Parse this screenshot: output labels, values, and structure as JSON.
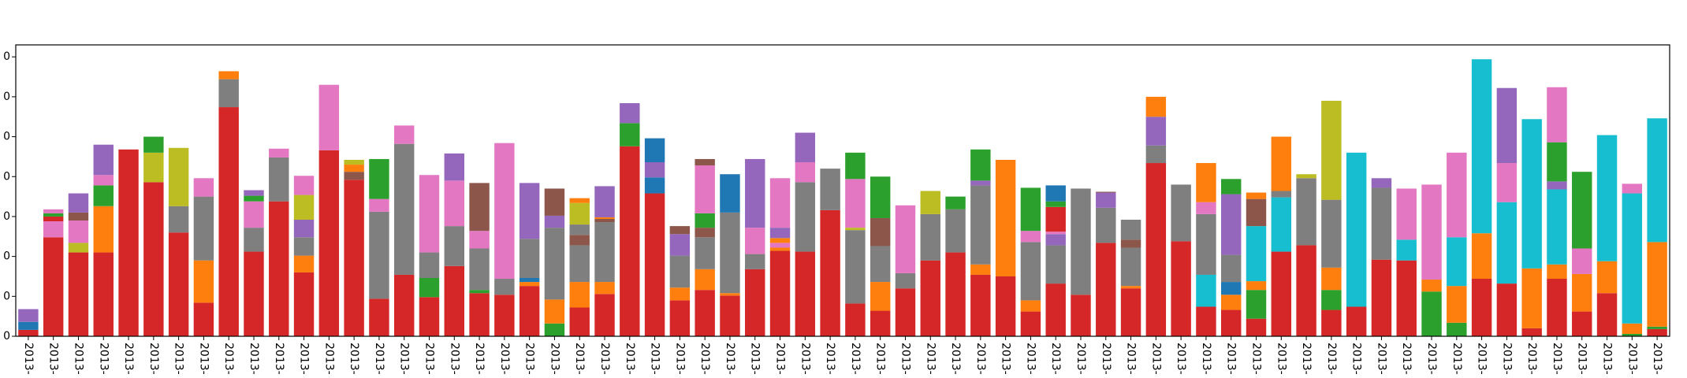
{
  "chart_data": {
    "type": "bar",
    "stacked": true,
    "title": "",
    "xlabel": "",
    "ylabel": "",
    "ylim": [
      0,
      365
    ],
    "yticks": [
      0,
      50,
      100,
      150,
      200,
      250,
      300,
      350
    ],
    "ytick_labels": [
      "0",
      "0",
      "0",
      "0",
      "0",
      "0",
      "0",
      "0"
    ],
    "grid": false,
    "legend": "none",
    "category_label": "2013-",
    "series_colors": {
      "red": "#d62728",
      "blue": "#1f77b4",
      "pink": "#e377c2",
      "green": "#2ca02c",
      "brown": "#8c564b",
      "purple": "#9467bd",
      "olive": "#bcbd22",
      "orange": "#ff7f0e",
      "gray": "#7f7f7f",
      "cyan": "#17becf"
    },
    "bars": [
      [
        [
          "red",
          8
        ],
        [
          "blue",
          10
        ],
        [
          "purple",
          16
        ]
      ],
      [
        [
          "red",
          124
        ],
        [
          "pink",
          20
        ],
        [
          "red",
          6
        ],
        [
          "green",
          4
        ],
        [
          "pink",
          5
        ]
      ],
      [
        [
          "red",
          105
        ],
        [
          "olive",
          12
        ],
        [
          "pink",
          28
        ],
        [
          "brown",
          10
        ],
        [
          "purple",
          24
        ]
      ],
      [
        [
          "red",
          105
        ],
        [
          "orange",
          58
        ],
        [
          "green",
          26
        ],
        [
          "pink",
          13
        ],
        [
          "purple",
          38
        ]
      ],
      [
        [
          "red",
          234
        ]
      ],
      [
        [
          "red",
          193
        ],
        [
          "olive",
          37
        ],
        [
          "green",
          20
        ]
      ],
      [
        [
          "red",
          130
        ],
        [
          "gray",
          33
        ],
        [
          "olive",
          73
        ]
      ],
      [
        [
          "red",
          42
        ],
        [
          "orange",
          53
        ],
        [
          "gray",
          80
        ],
        [
          "pink",
          23
        ]
      ],
      [
        [
          "red",
          287
        ],
        [
          "gray",
          35
        ],
        [
          "orange",
          10
        ]
      ],
      [
        [
          "red",
          106
        ],
        [
          "gray",
          30
        ],
        [
          "pink",
          33
        ],
        [
          "green",
          7
        ],
        [
          "purple",
          7
        ]
      ],
      [
        [
          "red",
          169
        ],
        [
          "gray",
          55
        ],
        [
          "pink",
          11
        ]
      ],
      [
        [
          "red",
          80
        ],
        [
          "orange",
          21
        ],
        [
          "gray",
          23
        ],
        [
          "purple",
          22
        ],
        [
          "olive",
          31
        ],
        [
          "pink",
          24
        ]
      ],
      [
        [
          "red",
          233
        ],
        [
          "pink",
          82
        ]
      ],
      [
        [
          "red",
          196
        ],
        [
          "brown",
          10
        ],
        [
          "orange",
          9
        ],
        [
          "olive",
          6
        ]
      ],
      [
        [
          "red",
          47
        ],
        [
          "gray",
          109
        ],
        [
          "pink",
          16
        ],
        [
          "green",
          50
        ]
      ],
      [
        [
          "red",
          77
        ],
        [
          "gray",
          164
        ],
        [
          "pink",
          23
        ]
      ],
      [
        [
          "red",
          49
        ],
        [
          "green",
          24
        ],
        [
          "gray",
          32
        ],
        [
          "pink",
          97
        ]
      ],
      [
        [
          "red",
          88
        ],
        [
          "gray",
          50
        ],
        [
          "pink",
          57
        ],
        [
          "purple",
          34
        ]
      ],
      [
        [
          "red",
          54
        ],
        [
          "green",
          4
        ],
        [
          "gray",
          52
        ],
        [
          "pink",
          22
        ],
        [
          "brown",
          60
        ]
      ],
      [
        [
          "red",
          52
        ],
        [
          "gray",
          20
        ],
        [
          "pink",
          170
        ]
      ],
      [
        [
          "red",
          63
        ],
        [
          "orange",
          5
        ],
        [
          "blue",
          5
        ],
        [
          "gray",
          49
        ],
        [
          "purple",
          70
        ]
      ],
      [
        [
          "green",
          16
        ],
        [
          "orange",
          30
        ],
        [
          "gray",
          90
        ],
        [
          "purple",
          15
        ],
        [
          "brown",
          34
        ]
      ],
      [
        [
          "red",
          36
        ],
        [
          "orange",
          32
        ],
        [
          "gray",
          46
        ],
        [
          "brown",
          13
        ],
        [
          "gray",
          13
        ],
        [
          "olive",
          27
        ],
        [
          "orange",
          6
        ]
      ],
      [
        [
          "red",
          53
        ],
        [
          "orange",
          15
        ],
        [
          "gray",
          75
        ],
        [
          "brown",
          4
        ],
        [
          "orange",
          2
        ],
        [
          "purple",
          39
        ]
      ],
      [
        [
          "red",
          238
        ],
        [
          "green",
          29
        ],
        [
          "purple",
          25
        ]
      ],
      [
        [
          "red",
          179
        ],
        [
          "blue",
          20
        ],
        [
          "purple",
          19
        ],
        [
          "blue",
          30
        ]
      ],
      [
        [
          "red",
          45
        ],
        [
          "orange",
          16
        ],
        [
          "gray",
          40
        ],
        [
          "purple",
          27
        ],
        [
          "brown",
          10
        ]
      ],
      [
        [
          "red",
          58
        ],
        [
          "orange",
          26
        ],
        [
          "gray",
          40
        ],
        [
          "brown",
          12
        ],
        [
          "green",
          18
        ],
        [
          "pink",
          60
        ],
        [
          "brown",
          8
        ]
      ],
      [
        [
          "red",
          51
        ],
        [
          "orange",
          3
        ],
        [
          "gray",
          101
        ],
        [
          "blue",
          48
        ]
      ],
      [
        [
          "red",
          84
        ],
        [
          "gray",
          19
        ],
        [
          "pink",
          33
        ],
        [
          "purple",
          86
        ]
      ],
      [
        [
          "red",
          107
        ],
        [
          "orange",
          4
        ],
        [
          "pink",
          6
        ],
        [
          "orange",
          6
        ],
        [
          "purple",
          13
        ],
        [
          "pink",
          62
        ]
      ],
      [
        [
          "red",
          106
        ],
        [
          "gray",
          87
        ],
        [
          "pink",
          25
        ],
        [
          "purple",
          37
        ]
      ],
      [
        [
          "red",
          158
        ],
        [
          "gray",
          52
        ]
      ],
      [
        [
          "red",
          41
        ],
        [
          "gray",
          92
        ],
        [
          "olive",
          3
        ],
        [
          "pink",
          61
        ],
        [
          "green",
          33
        ]
      ],
      [
        [
          "red",
          32
        ],
        [
          "orange",
          36
        ],
        [
          "gray",
          45
        ],
        [
          "brown",
          35
        ],
        [
          "green",
          52
        ]
      ],
      [
        [
          "red",
          60
        ],
        [
          "gray",
          19
        ],
        [
          "pink",
          85
        ]
      ],
      [
        [
          "red",
          95
        ],
        [
          "gray",
          58
        ],
        [
          "olive",
          29
        ]
      ],
      [
        [
          "red",
          105
        ],
        [
          "gray",
          54
        ],
        [
          "green",
          16
        ]
      ],
      [
        [
          "red",
          77
        ],
        [
          "orange",
          13
        ],
        [
          "gray",
          99
        ],
        [
          "purple",
          6
        ],
        [
          "green",
          39
        ]
      ],
      [
        [
          "red",
          75
        ],
        [
          "orange",
          146
        ]
      ],
      [
        [
          "red",
          31
        ],
        [
          "orange",
          14
        ],
        [
          "gray",
          73
        ],
        [
          "pink",
          14
        ],
        [
          "green",
          54
        ]
      ],
      [
        [
          "red",
          66
        ],
        [
          "gray",
          48
        ],
        [
          "purple",
          14
        ],
        [
          "pink",
          3
        ],
        [
          "red",
          31
        ],
        [
          "green",
          7
        ],
        [
          "blue",
          20
        ]
      ],
      [
        [
          "red",
          52
        ],
        [
          "gray",
          133
        ]
      ],
      [
        [
          "red",
          117
        ],
        [
          "gray",
          44
        ],
        [
          "purple",
          19
        ],
        [
          "brown",
          1
        ]
      ],
      [
        [
          "red",
          60
        ],
        [
          "orange",
          3
        ],
        [
          "gray",
          48
        ],
        [
          "brown",
          10
        ],
        [
          "gray",
          25
        ]
      ],
      [
        [
          "red",
          217
        ],
        [
          "gray",
          22
        ],
        [
          "purple",
          36
        ],
        [
          "orange",
          25
        ]
      ],
      [
        [
          "red",
          119
        ],
        [
          "gray",
          71
        ]
      ],
      [
        [
          "red",
          37
        ],
        [
          "cyan",
          40
        ],
        [
          "gray",
          76
        ],
        [
          "pink",
          15
        ],
        [
          "orange",
          49
        ]
      ],
      [
        [
          "red",
          33
        ],
        [
          "orange",
          19
        ],
        [
          "blue",
          16
        ],
        [
          "gray",
          34
        ],
        [
          "purple",
          76
        ],
        [
          "green",
          19
        ]
      ],
      [
        [
          "red",
          22
        ],
        [
          "green",
          36
        ],
        [
          "orange",
          11
        ],
        [
          "cyan",
          69
        ],
        [
          "brown",
          34
        ],
        [
          "orange",
          8
        ]
      ],
      [
        [
          "red",
          106
        ],
        [
          "cyan",
          68
        ],
        [
          "gray",
          8
        ],
        [
          "orange",
          68
        ]
      ],
      [
        [
          "red",
          114
        ],
        [
          "gray",
          84
        ],
        [
          "olive",
          5
        ]
      ],
      [
        [
          "red",
          33
        ],
        [
          "green",
          25
        ],
        [
          "orange",
          28
        ],
        [
          "gray",
          85
        ],
        [
          "olive",
          124
        ]
      ],
      [
        [
          "red",
          37
        ],
        [
          "cyan",
          193
        ]
      ],
      [
        [
          "red",
          96
        ],
        [
          "gray",
          90
        ],
        [
          "purple",
          12
        ]
      ],
      [
        [
          "red",
          95
        ],
        [
          "cyan",
          26
        ],
        [
          "pink",
          64
        ]
      ],
      [
        [
          "green",
          56
        ],
        [
          "orange",
          15
        ],
        [
          "pink",
          119
        ]
      ],
      [
        [
          "green",
          17
        ],
        [
          "orange",
          46
        ],
        [
          "cyan",
          61
        ],
        [
          "pink",
          106
        ]
      ],
      [
        [
          "red",
          72
        ],
        [
          "orange",
          57
        ],
        [
          "cyan",
          218
        ]
      ],
      [
        [
          "red",
          66
        ],
        [
          "cyan",
          102
        ],
        [
          "pink",
          49
        ],
        [
          "purple",
          94
        ]
      ],
      [
        [
          "red",
          10
        ],
        [
          "orange",
          75
        ],
        [
          "cyan",
          187
        ]
      ],
      [
        [
          "red",
          72
        ],
        [
          "orange",
          18
        ],
        [
          "cyan",
          94
        ],
        [
          "purple",
          10
        ],
        [
          "green",
          49
        ],
        [
          "pink",
          69
        ]
      ],
      [
        [
          "red",
          31
        ],
        [
          "orange",
          47
        ],
        [
          "pink",
          32
        ],
        [
          "green",
          96
        ]
      ],
      [
        [
          "red",
          54
        ],
        [
          "orange",
          40
        ],
        [
          "cyan",
          158
        ]
      ],
      [
        [
          "green",
          3
        ],
        [
          "orange",
          13
        ],
        [
          "cyan",
          163
        ],
        [
          "pink",
          12
        ]
      ],
      [
        [
          "red",
          9
        ],
        [
          "green",
          3
        ],
        [
          "orange",
          106
        ],
        [
          "cyan",
          155
        ]
      ]
    ]
  }
}
